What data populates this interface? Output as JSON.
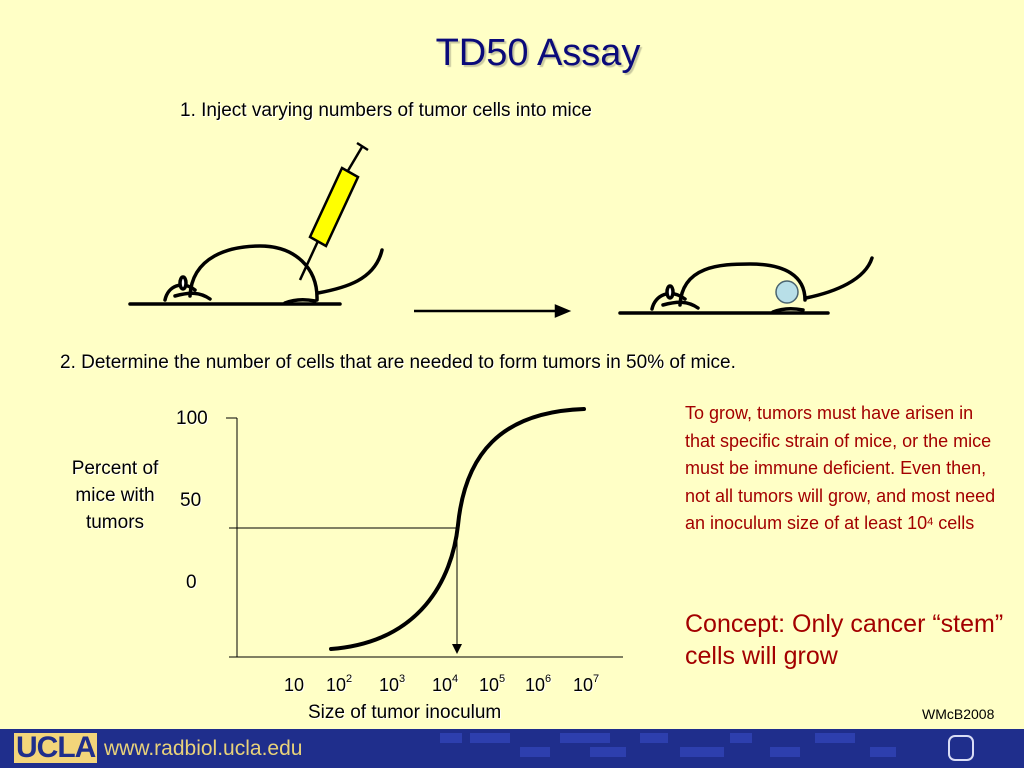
{
  "title": "TD50 Assay",
  "step1": "1. Inject varying numbers of tumor cells into mice",
  "step2": "2. Determine the number of cells that are needed to form tumors in 50% of mice.",
  "chart": {
    "ylabel": "Percent of mice with tumors",
    "yticks": [
      "100",
      "50",
      "0"
    ],
    "xticks": [
      {
        "base": "10",
        "exp": ""
      },
      {
        "base": "10",
        "exp": "2"
      },
      {
        "base": "10",
        "exp": "3"
      },
      {
        "base": "10",
        "exp": "4"
      },
      {
        "base": "10",
        "exp": "5"
      },
      {
        "base": "10",
        "exp": "6"
      },
      {
        "base": "10",
        "exp": "7"
      }
    ],
    "xlabel": "Size of tumor inoculum"
  },
  "note": {
    "text": "To grow, tumors must have arisen in that specific strain of mice, or the mice must be immune deficient. Even then, not all tumors will grow, and most need an inoculum size of at least 10",
    "exp": "4",
    "tail": " cells"
  },
  "concept": "Concept: Only cancer “stem” cells will grow",
  "credit": "WMcB2008",
  "footer": {
    "logo": "UCLA",
    "url": "www.radbiol.ucla.edu"
  },
  "colors": {
    "background": "#ffffc6",
    "title": "#0a0a7a",
    "note": "#a30000",
    "syringe": "#ffff00",
    "tumor": "#b8dfe8",
    "footer": "#1f2e8c"
  }
}
